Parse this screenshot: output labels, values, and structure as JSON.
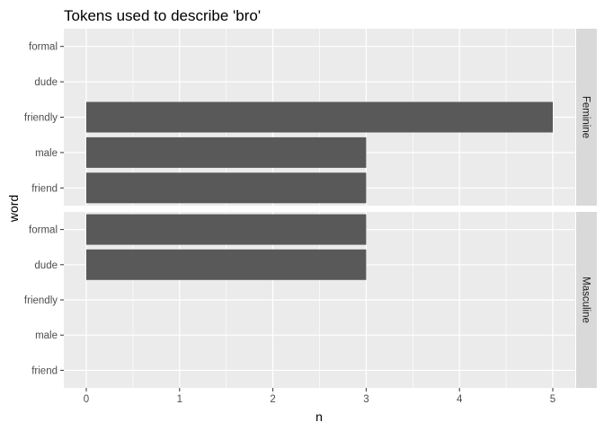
{
  "chart_data": {
    "type": "bar",
    "orientation": "horizontal",
    "title": "Tokens used to describe 'bro'",
    "xlabel": "n",
    "ylabel": "word",
    "xlim": [
      0,
      5
    ],
    "x_ticks": [
      "0",
      "1",
      "2",
      "3",
      "4",
      "5"
    ],
    "categories": [
      "formal",
      "dude",
      "friendly",
      "male",
      "friend"
    ],
    "grid": true,
    "bar_color": "#595959",
    "panel_background": "#ebebeb",
    "strip_background": "#d9d9d9",
    "facets": [
      {
        "label": "Feminine",
        "values": {
          "formal": 0,
          "dude": 0,
          "friendly": 5,
          "male": 3,
          "friend": 3
        }
      },
      {
        "label": "Masculine",
        "values": {
          "formal": 3,
          "dude": 3,
          "friendly": 0,
          "male": 0,
          "friend": 0
        }
      }
    ]
  }
}
